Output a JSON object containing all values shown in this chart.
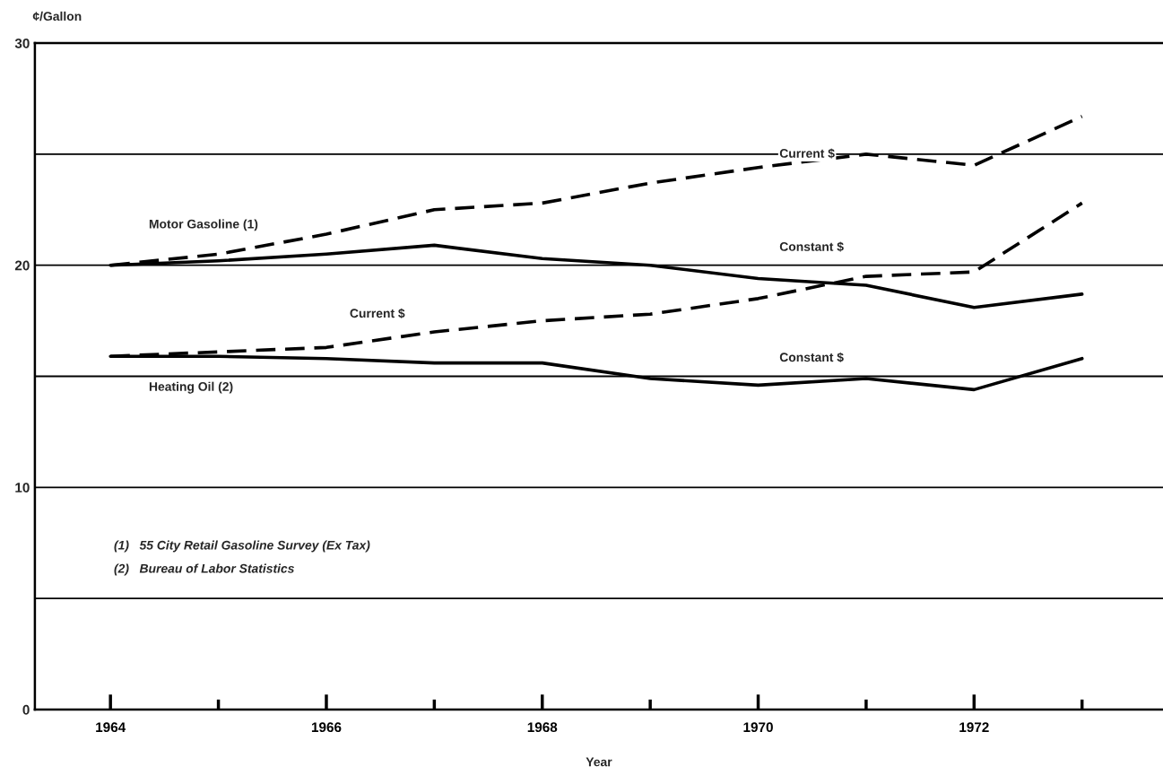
{
  "chart_data": {
    "type": "line",
    "ylabel": "¢/Gallon",
    "xlabel": "Year",
    "x": [
      1964,
      1965,
      1966,
      1967,
      1968,
      1969,
      1970,
      1971,
      1972,
      1973
    ],
    "series": [
      {
        "color": "#000000",
        "line_style": "dashed",
        "values": [
          20.0,
          20.5,
          21.4,
          22.5,
          22.8,
          23.7,
          24.4,
          25.0,
          24.5,
          26.7
        ]
      },
      {
        "color": "#000000",
        "line_style": "solid",
        "values": [
          20.0,
          20.2,
          20.5,
          20.9,
          20.3,
          20.0,
          19.4,
          19.1,
          18.1,
          18.7
        ]
      },
      {
        "color": "#000000",
        "line_style": "dashed",
        "values": [
          15.9,
          16.1,
          16.3,
          17.0,
          17.5,
          17.8,
          18.5,
          19.5,
          19.7,
          22.8
        ]
      },
      {
        "color": "#000000",
        "line_style": "solid",
        "values": [
          15.9,
          15.9,
          15.8,
          15.6,
          15.6,
          14.9,
          14.6,
          14.9,
          14.4,
          15.8
        ]
      }
    ],
    "xlim": [
      1963.3,
      1973.75
    ],
    "xticks": [
      1964,
      {
        "value": 1965,
        "label": null
      },
      1966,
      {
        "value": 1967,
        "label": null
      },
      1968,
      {
        "value": 1969,
        "label": null
      },
      1970,
      {
        "value": 1971,
        "label": null
      },
      1972,
      {
        "value": 1973,
        "label": null
      }
    ],
    "ylim": [
      0,
      30
    ],
    "yticks": [
      0,
      {
        "value": 5,
        "label": null
      },
      10,
      {
        "value": 15,
        "label": null
      },
      20,
      {
        "value": 25,
        "label": null
      },
      30
    ],
    "grid": "y",
    "legend": false,
    "marker": "none",
    "annotations": [
      "Current $",
      "Constant $",
      "Motor Gasoline (1)",
      "Current $",
      "Constant $",
      "Heating Oil (2)",
      "(1)   55 City Retail Gasoline Survey (Ex Tax)",
      "(2)   Bureau of Labor Statistics"
    ]
  }
}
